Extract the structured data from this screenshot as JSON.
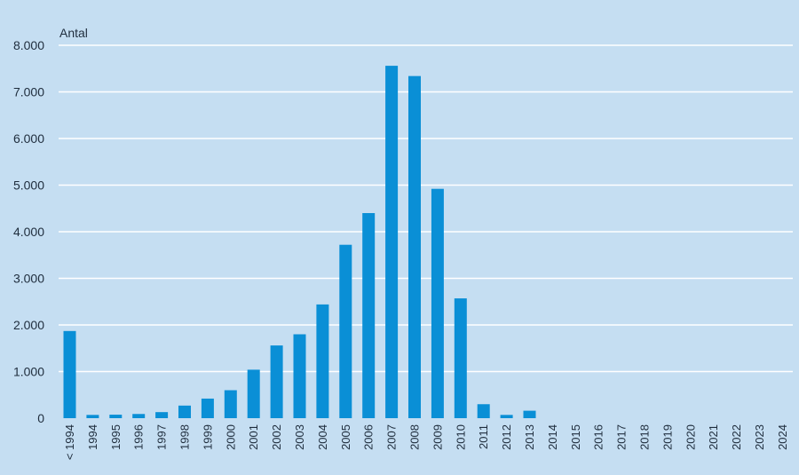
{
  "chart_data": {
    "type": "bar",
    "title": "",
    "xlabel": "",
    "ylabel": "Antal",
    "ylim": [
      0,
      8000
    ],
    "y_ticks": [
      "0",
      "1.000",
      "2.000",
      "3.000",
      "4.000",
      "5.000",
      "6.000",
      "7.000",
      "8.000"
    ],
    "y_tick_values": [
      0,
      1000,
      2000,
      3000,
      4000,
      5000,
      6000,
      7000,
      8000
    ],
    "grid": true,
    "categories": [
      "< 1994",
      "1994",
      "1995",
      "1996",
      "1997",
      "1998",
      "1999",
      "2000",
      "2001",
      "2002",
      "2003",
      "2004",
      "2005",
      "2006",
      "2007",
      "2008",
      "2009",
      "2010",
      "2011",
      "2012",
      "2013",
      "2014",
      "2015",
      "2016",
      "2017",
      "2018",
      "2019",
      "2020",
      "2021",
      "2022",
      "2023",
      "2024"
    ],
    "values": [
      1870,
      70,
      75,
      90,
      130,
      270,
      420,
      600,
      1040,
      1560,
      1800,
      2440,
      3720,
      4400,
      7560,
      7340,
      4920,
      2570,
      300,
      70,
      160,
      0,
      0,
      0,
      0,
      0,
      0,
      0,
      0,
      0,
      0,
      0
    ],
    "colors": {
      "background": "#c5def2",
      "bar": "#0a8fd6",
      "grid": "#ffffff",
      "text": "#1f2d3d"
    }
  }
}
